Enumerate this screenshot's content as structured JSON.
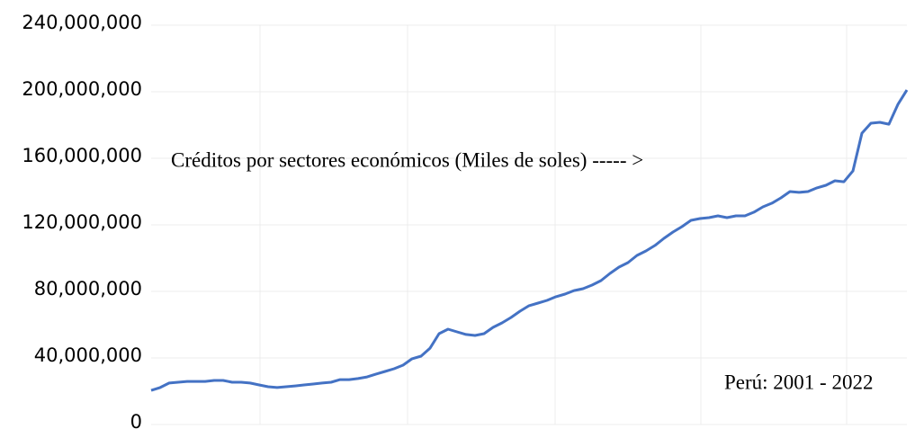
{
  "chart_data": {
    "type": "line",
    "annotations": [
      "Créditos por sectores económicos (Miles de soles) ----- >",
      "Perú: 2001 - 2022"
    ],
    "categories": [
      null,
      null,
      null,
      null,
      null,
      null,
      null,
      null,
      null,
      null,
      null,
      null,
      null,
      null,
      null,
      null,
      null,
      null,
      null,
      null,
      null,
      null,
      null,
      null,
      null,
      null,
      null,
      null,
      null,
      null,
      null,
      null,
      null,
      null,
      null,
      null,
      null,
      null,
      null,
      null,
      null,
      null,
      null,
      null,
      null,
      null,
      null,
      null,
      null,
      null,
      null,
      null,
      null,
      null,
      null,
      null,
      null,
      null,
      null,
      null,
      null,
      null,
      null,
      null,
      null,
      null,
      null,
      null,
      null,
      null,
      null,
      null,
      null,
      null,
      null,
      null,
      null,
      null,
      null,
      null,
      null,
      null,
      null,
      null,
      null
    ],
    "series": [
      {
        "name": null,
        "color": "#4472c4",
        "values": [
          20500000,
          22200000,
          24900000,
          25400000,
          25900000,
          25900000,
          25900000,
          26500000,
          26500000,
          25400000,
          25400000,
          24900000,
          23800000,
          22700000,
          22200000,
          22700000,
          23200000,
          23800000,
          24300000,
          24900000,
          25400000,
          27000000,
          27000000,
          27600000,
          28600000,
          30300000,
          31900000,
          33500000,
          35700000,
          39500000,
          41100000,
          45900000,
          54600000,
          57300000,
          55700000,
          54100000,
          53500000,
          54600000,
          58400000,
          61100000,
          64300000,
          68100000,
          71400000,
          73000000,
          74600000,
          76800000,
          78400000,
          80500000,
          81600000,
          83800000,
          86500000,
          90800000,
          94600000,
          97300000,
          101600000,
          104300000,
          107600000,
          111900000,
          115700000,
          118900000,
          122700000,
          123800000,
          124300000,
          125400000,
          124300000,
          125400000,
          125400000,
          127600000,
          130800000,
          133000000,
          136200000,
          140000000,
          139500000,
          140000000,
          142200000,
          143800000,
          146500000,
          145900000,
          152400000,
          175100000,
          181100000,
          181600000,
          180500000,
          192400000,
          201000000
        ]
      }
    ],
    "ylim": [
      0,
      240000000
    ],
    "yticks": [
      {
        "value": 0,
        "label": "0"
      },
      {
        "value": 40000000,
        "label": "40,000,000"
      },
      {
        "value": 80000000,
        "label": "80,000,000"
      },
      {
        "value": 120000000,
        "label": "120,000,000"
      },
      {
        "value": 160000000,
        "label": "160,000,000"
      },
      {
        "value": 200000000,
        "label": "200,000,000"
      },
      {
        "value": 240000000,
        "label": "240,000,000"
      }
    ],
    "grid": true
  }
}
